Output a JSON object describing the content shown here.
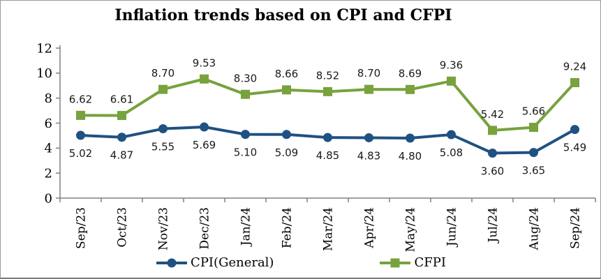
{
  "title": "Inflation trends based on CPI and CFPI",
  "chart_data": {
    "type": "line",
    "title": "Inflation trends based on CPI and CFPI",
    "categories": [
      "Sep/23",
      "Oct/23",
      "Nov/23",
      "Dec/23",
      "Jan/24",
      "Feb/24",
      "Mar/24",
      "Apr/24",
      "May/24",
      "Jun/24",
      "Jul/24",
      "Aug/24",
      "Sep/24"
    ],
    "series": [
      {
        "key": "cpi",
        "name": "CPI(General)",
        "values": [
          5.02,
          4.87,
          5.55,
          5.69,
          5.1,
          5.09,
          4.85,
          4.83,
          4.8,
          5.08,
          3.6,
          3.65,
          5.49
        ],
        "color": "#1F5182",
        "marker": "circle",
        "label_position": "below"
      },
      {
        "key": "cfpi",
        "name": "CFPI",
        "values": [
          6.62,
          6.61,
          8.7,
          9.53,
          8.3,
          8.66,
          8.52,
          8.7,
          8.69,
          9.36,
          5.42,
          5.66,
          9.24
        ],
        "color": "#77A23D",
        "marker": "square",
        "label_position": "above"
      }
    ],
    "xlabel": "",
    "ylabel": "",
    "ylim": [
      0,
      12
    ],
    "ytick_step": 2,
    "grid": false,
    "legend_position": "bottom",
    "x_tick_label_rotation": -90,
    "data_labels_decimals": 2
  },
  "colors": {
    "cpi_line": "#1F5182",
    "cfpi_line": "#77A23D",
    "axis": "#808080",
    "text": "#000000",
    "data_label_text": "#1a1a1a",
    "frame_border": "#999999",
    "background": "#ffffff"
  }
}
